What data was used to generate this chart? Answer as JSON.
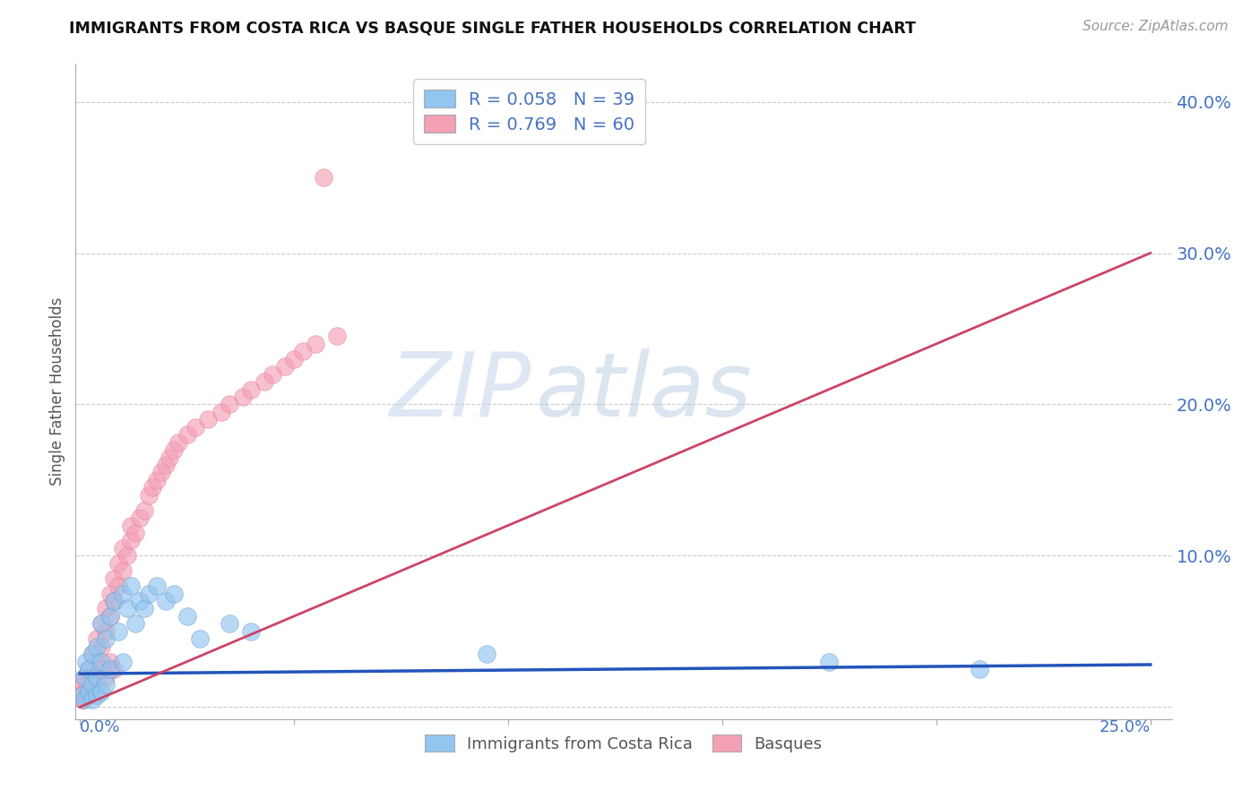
{
  "title": "IMMIGRANTS FROM COSTA RICA VS BASQUE SINGLE FATHER HOUSEHOLDS CORRELATION CHART",
  "source": "Source: ZipAtlas.com",
  "ylabel": "Single Father Households",
  "legend_r1": "R = 0.058",
  "legend_n1": "N = 39",
  "legend_r2": "R = 0.769",
  "legend_n2": "N = 60",
  "color_blue": "#92C5F0",
  "color_pink": "#F4A0B5",
  "line_color_blue": "#2255BB",
  "line_color_pink": "#CC4466",
  "watermark_zip": "ZIP",
  "watermark_atlas": "atlas",
  "background_color": "#ffffff",
  "blue_x": [
    0.0005,
    0.001,
    0.001,
    0.0015,
    0.002,
    0.002,
    0.003,
    0.003,
    0.003,
    0.004,
    0.004,
    0.004,
    0.005,
    0.005,
    0.005,
    0.006,
    0.006,
    0.007,
    0.007,
    0.008,
    0.009,
    0.01,
    0.01,
    0.011,
    0.012,
    0.013,
    0.014,
    0.015,
    0.016,
    0.018,
    0.02,
    0.022,
    0.025,
    0.028,
    0.035,
    0.04,
    0.095,
    0.175,
    0.21
  ],
  "blue_y": [
    0.008,
    0.02,
    0.005,
    0.03,
    0.01,
    0.025,
    0.015,
    0.035,
    0.005,
    0.02,
    0.04,
    0.008,
    0.03,
    0.055,
    0.01,
    0.045,
    0.015,
    0.06,
    0.025,
    0.07,
    0.05,
    0.075,
    0.03,
    0.065,
    0.08,
    0.055,
    0.07,
    0.065,
    0.075,
    0.08,
    0.07,
    0.075,
    0.06,
    0.045,
    0.055,
    0.05,
    0.035,
    0.03,
    0.025
  ],
  "pink_x": [
    0.0005,
    0.001,
    0.001,
    0.0015,
    0.002,
    0.002,
    0.003,
    0.003,
    0.004,
    0.004,
    0.005,
    0.005,
    0.006,
    0.006,
    0.007,
    0.007,
    0.008,
    0.008,
    0.009,
    0.009,
    0.01,
    0.01,
    0.011,
    0.012,
    0.012,
    0.013,
    0.014,
    0.015,
    0.016,
    0.017,
    0.018,
    0.019,
    0.02,
    0.021,
    0.022,
    0.023,
    0.025,
    0.027,
    0.03,
    0.033,
    0.035,
    0.038,
    0.04,
    0.043,
    0.045,
    0.048,
    0.05,
    0.052,
    0.055,
    0.06,
    0.0005,
    0.001,
    0.002,
    0.003,
    0.004,
    0.005,
    0.006,
    0.007,
    0.008,
    0.057
  ],
  "pink_y": [
    0.005,
    0.01,
    0.02,
    0.015,
    0.01,
    0.025,
    0.02,
    0.035,
    0.03,
    0.045,
    0.04,
    0.055,
    0.05,
    0.065,
    0.06,
    0.075,
    0.07,
    0.085,
    0.08,
    0.095,
    0.09,
    0.105,
    0.1,
    0.11,
    0.12,
    0.115,
    0.125,
    0.13,
    0.14,
    0.145,
    0.15,
    0.155,
    0.16,
    0.165,
    0.17,
    0.175,
    0.18,
    0.185,
    0.19,
    0.195,
    0.2,
    0.205,
    0.21,
    0.215,
    0.22,
    0.225,
    0.23,
    0.235,
    0.24,
    0.245,
    0.005,
    0.015,
    0.01,
    0.02,
    0.015,
    0.025,
    0.02,
    0.03,
    0.025,
    0.35
  ]
}
